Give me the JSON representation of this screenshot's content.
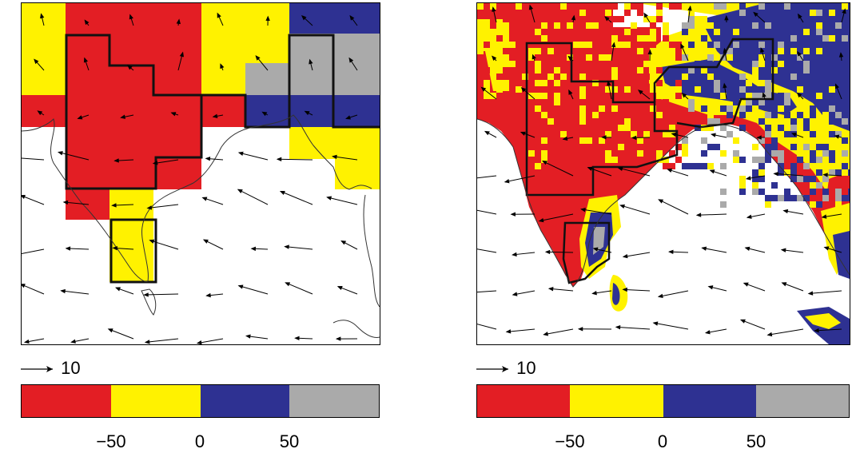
{
  "colors": {
    "red": "#e31e24",
    "yellow": "#fff200",
    "blue": "#2e3192",
    "gray": "#aaaaaa",
    "white": "#ffffff"
  },
  "panels": [
    {
      "id": "left",
      "reference_vector_label": "10",
      "colorbar": {
        "segments": [
          "#e31e24",
          "#fff200",
          "#2e3192",
          "#aaaaaa"
        ],
        "ticks": [
          "−50",
          "0",
          "50"
        ]
      }
    },
    {
      "id": "right",
      "reference_vector_label": "10",
      "colorbar": {
        "segments": [
          "#e31e24",
          "#fff200",
          "#2e3192",
          "#aaaaaa"
        ],
        "ticks": [
          "−50",
          "0",
          "50"
        ]
      }
    }
  ]
}
